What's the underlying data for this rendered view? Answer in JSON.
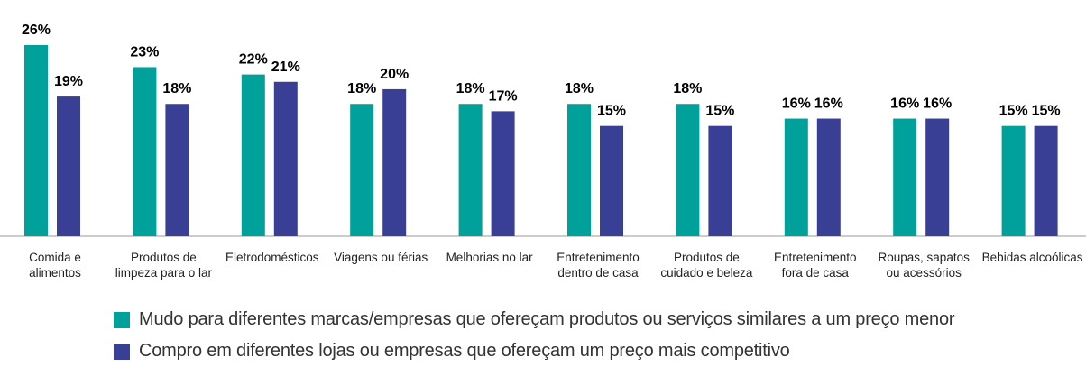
{
  "chart_data": {
    "type": "bar",
    "categories": [
      "Comida e\nalimentos",
      "Produtos de\nlimpeza para o lar",
      "Eletrodomésticos",
      "Viagens ou férias",
      "Melhorias no lar",
      "Entretenimento\ndentro de casa",
      "Produtos de\ncuidado e beleza",
      "Entretenimento\nfora de casa",
      "Roupas, sapatos\nou acessórios",
      "Bebidas alcoólicas"
    ],
    "series": [
      {
        "name": "Mudo para diferentes marcas/empresas que ofereçam produtos ou serviços similares a um preço menor",
        "color": "#00a19a",
        "values": [
          26,
          23,
          22,
          18,
          18,
          18,
          18,
          16,
          16,
          15
        ],
        "value_labels": [
          "26%",
          "23%",
          "22%",
          "18%",
          "18%",
          "18%",
          "18%",
          "16%",
          "16%",
          "15%"
        ]
      },
      {
        "name": "Compro em diferentes lojas ou empresas que ofereçam um preço mais competitivo",
        "color": "#3a3f96",
        "values": [
          19,
          18,
          21,
          20,
          17,
          15,
          15,
          16,
          16,
          15
        ],
        "value_labels": [
          "19%",
          "18%",
          "21%",
          "20%",
          "17%",
          "15%",
          "15%",
          "16%",
          "16%",
          "15%"
        ]
      }
    ]
  }
}
